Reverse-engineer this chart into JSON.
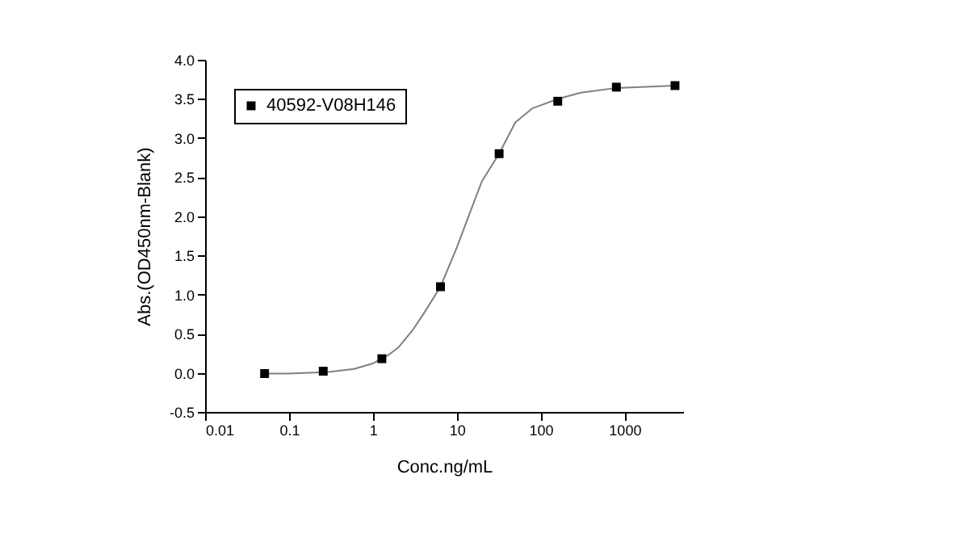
{
  "chart_data": {
    "type": "scatter",
    "xlabel": "Conc.ng/mL",
    "ylabel": "Abs.(OD450nm-Blank)",
    "log": "x",
    "grid": false,
    "legend": "top left",
    "xlim": [
      0.01,
      5000
    ],
    "xticks": [
      0.01,
      0.1,
      1,
      10,
      100,
      1000
    ],
    "ylim": [
      -0.5,
      4.0
    ],
    "yticks": [
      -0.5,
      {
        "value": 0,
        "label": "0.0"
      },
      0.5,
      {
        "value": 1,
        "label": "1.0"
      },
      1.5,
      {
        "value": 2,
        "label": "2.0"
      },
      2.5,
      {
        "value": 3,
        "label": "3.0"
      },
      3.5,
      {
        "value": 4,
        "label": "4.0"
      }
    ],
    "series": [
      {
        "type": "line",
        "color": "#808080",
        "marker": "none",
        "line_style": "solid",
        "x": [
          0.05,
          0.1,
          0.3,
          0.6,
          1.0,
          1.5,
          2,
          3,
          4,
          6.4,
          10,
          15,
          20,
          32,
          50,
          80,
          160,
          300,
          800,
          4000
        ],
        "values": [
          -0.01,
          -0.01,
          0.01,
          0.05,
          0.12,
          0.22,
          0.32,
          0.55,
          0.75,
          1.1,
          1.6,
          2.1,
          2.45,
          2.8,
          3.2,
          3.38,
          3.5,
          3.58,
          3.64,
          3.67
        ]
      },
      {
        "name": "40592-V08H146",
        "color": "#000000",
        "marker": "square",
        "x": [
          0.0512,
          0.256,
          1.28,
          6.4,
          32,
          160,
          800,
          4000
        ],
        "values": [
          -0.01,
          0.02,
          0.18,
          1.1,
          2.8,
          3.47,
          3.65,
          3.67
        ]
      }
    ]
  }
}
